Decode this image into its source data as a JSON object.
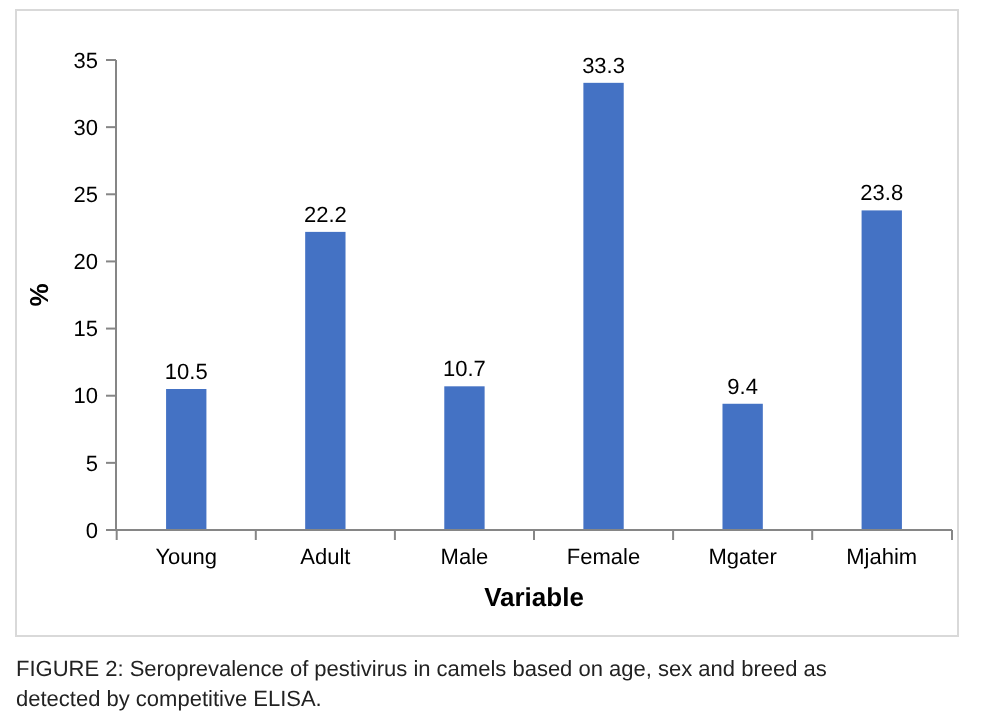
{
  "chart_data": {
    "type": "bar",
    "xlabel": "Variable",
    "ylabel": "%",
    "categories": [
      "Young",
      "Adult",
      "Male",
      "Female",
      "Mgater",
      "Mjahim"
    ],
    "values": [
      10.5,
      22.2,
      10.7,
      33.3,
      9.4,
      23.8
    ],
    "color": "#4472c4",
    "ylim": [
      0,
      35
    ],
    "yticks": [
      0,
      5,
      10,
      15,
      20,
      25,
      30,
      35
    ],
    "data_labels": true,
    "annotations": [
      "FIGURE 2: Seroprevalence of pestivirus in camels based on age, sex and breed as detected by competitive ELISA."
    ]
  }
}
